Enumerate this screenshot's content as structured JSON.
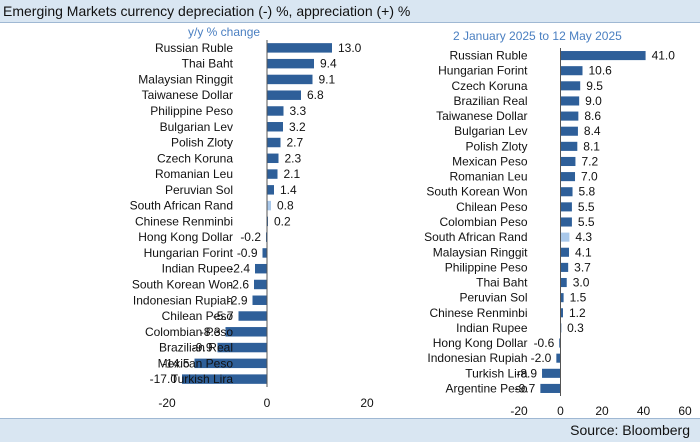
{
  "header": {
    "title": "Emerging Markets currency depreciation (-) %, appreciation (+) %"
  },
  "footer": {
    "source": "Source: Bloomberg"
  },
  "colors": {
    "bar": "#2e5f99",
    "highlight": "#a9c8ea",
    "subtitle": "#4a7fc1",
    "band": "#d9e6f2"
  },
  "chart_data": [
    {
      "type": "bar",
      "orientation": "horizontal",
      "subtitle": "y/y % change",
      "categories": [
        "Russian Ruble",
        "Thai Baht",
        "Malaysian Ringgit",
        "Taiwanese Dollar",
        "Philippine Peso",
        "Bulgarian Lev",
        "Polish Zloty",
        "Czech Koruna",
        "Romanian Leu",
        "Peruvian Sol",
        "South African Rand",
        "Chinese Renminbi",
        "Hong Kong Dollar",
        "Hungarian Forint",
        "Indian Rupee",
        "South Korean Won",
        "Indonesian Rupiah",
        "Chilean Peso",
        "Colombian Peso",
        "Brazilian Real",
        "Mexican Peso",
        "Turkish Lira"
      ],
      "values": [
        13.0,
        9.4,
        9.1,
        6.8,
        3.3,
        3.2,
        2.7,
        2.3,
        2.1,
        1.4,
        0.8,
        0.2,
        -0.2,
        -0.9,
        -2.4,
        -2.6,
        -2.9,
        -5.7,
        -8.3,
        -9.9,
        -14.5,
        -17.0
      ],
      "value_labels": [
        "13.0",
        "9.4",
        "9.1",
        "6.8",
        "3.3",
        "3.2",
        "2.7",
        "2.3",
        "2.1",
        "1.4",
        "0.8",
        "0.2",
        "-0.2",
        "-0.9",
        "-2.4",
        "-2.6",
        "-2.9",
        "-5.7",
        "-8.3",
        "-9.9",
        "-14.5",
        "-17.0"
      ],
      "highlight": "South African Rand",
      "xlim": [
        -20,
        20
      ],
      "xticks": [
        -20,
        0,
        20
      ]
    },
    {
      "type": "bar",
      "orientation": "horizontal",
      "subtitle": "2 January 2025 to 12 May 2025",
      "categories": [
        "Russian Ruble",
        "Hungarian Forint",
        "Czech Koruna",
        "Brazilian Real",
        "Taiwanese Dollar",
        "Bulgarian Lev",
        "Polish Zloty",
        "Mexican Peso",
        "Romanian Leu",
        "South Korean Won",
        "Chilean Peso",
        "Colombian Peso",
        "South African Rand",
        "Malaysian Ringgit",
        "Philippine Peso",
        "Thai Baht",
        "Peruvian Sol",
        "Chinese Renminbi",
        "Indian Rupee",
        "Hong Kong Dollar",
        "Indonesian Rupiah",
        "Turkish Lira",
        "Argentine Peso"
      ],
      "values": [
        41.0,
        10.6,
        9.5,
        9.0,
        8.6,
        8.4,
        8.1,
        7.2,
        7.0,
        5.8,
        5.5,
        5.5,
        4.3,
        4.1,
        3.7,
        3.0,
        1.5,
        1.2,
        0.3,
        -0.6,
        -2.0,
        -8.9,
        -9.7
      ],
      "value_labels": [
        "41.0",
        "10.6",
        "9.5",
        "9.0",
        "8.6",
        "8.4",
        "8.1",
        "7.2",
        "7.0",
        "5.8",
        "5.5",
        "5.5",
        "4.3",
        "4.1",
        "3.7",
        "3.0",
        "1.5",
        "1.2",
        "0.3",
        "-0.6",
        "-2.0",
        "-8.9",
        "-9.7"
      ],
      "highlight": "South African Rand",
      "xlim": [
        -20,
        60
      ],
      "xticks": [
        -20,
        0,
        20,
        40,
        60
      ]
    }
  ]
}
